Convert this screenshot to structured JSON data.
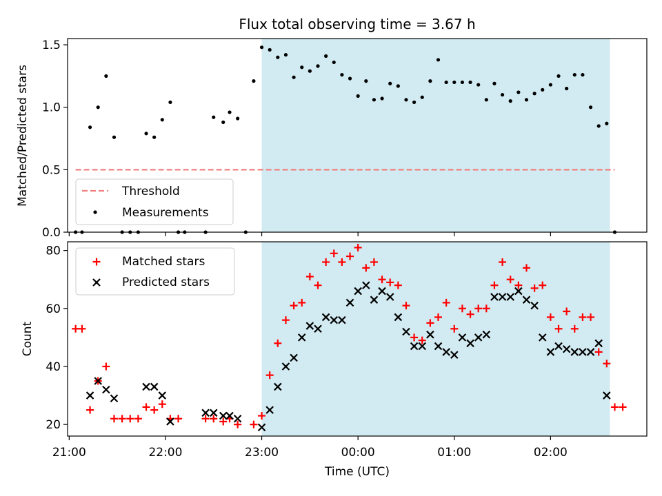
{
  "figure": {
    "title": "Flux total observing time = 3.67 h",
    "xlabel": "Time (UTC)"
  },
  "colors": {
    "shade": "#add8e6",
    "threshold": "#f08080",
    "measurements": "#000000",
    "matched": "#ff0000",
    "predicted": "#000000"
  },
  "chart_data": [
    {
      "type": "scatter",
      "panel": "top",
      "ylabel": "Matched/Predicted stars",
      "xlim": [
        "20:59",
        "03:00"
      ],
      "ylim": [
        0,
        1.55
      ],
      "yticks": [
        0.0,
        0.5,
        1.0,
        1.5
      ],
      "ytick_labels": [
        "0.0",
        "0.5",
        "1.0",
        "1.5"
      ],
      "shaded_span": [
        "23:00",
        "02:37"
      ],
      "threshold": {
        "name": "Threshold",
        "value": 0.5,
        "x": [
          "21:04",
          "02:40"
        ],
        "style": "dashed"
      },
      "legend": "lower-left",
      "series": [
        {
          "name": "Measurements",
          "x": [
            "21:04",
            "21:08",
            "21:13",
            "21:18",
            "21:23",
            "21:28",
            "21:33",
            "21:38",
            "21:43",
            "21:48",
            "21:53",
            "21:58",
            "22:03",
            "22:08",
            "22:12",
            "22:25",
            "22:30",
            "22:36",
            "22:40",
            "22:45",
            "22:50",
            "22:55",
            "23:00",
            "23:05",
            "23:10",
            "23:15",
            "23:20",
            "23:25",
            "23:30",
            "23:35",
            "23:40",
            "23:45",
            "23:50",
            "23:55",
            "24:00",
            "24:05",
            "24:10",
            "24:15",
            "24:20",
            "24:25",
            "24:30",
            "24:35",
            "24:40",
            "24:45",
            "24:50",
            "24:55",
            "25:00",
            "25:05",
            "25:10",
            "25:15",
            "25:20",
            "25:25",
            "25:30",
            "25:35",
            "25:40",
            "25:45",
            "25:50",
            "25:55",
            "26:00",
            "26:05",
            "26:10",
            "26:15",
            "26:20",
            "26:25",
            "26:30",
            "26:35",
            "26:40",
            "26:45"
          ],
          "y": [
            0.0,
            0.0,
            0.84,
            1.0,
            1.25,
            0.76,
            0.0,
            0.0,
            0.0,
            0.79,
            0.76,
            0.9,
            1.04,
            0.0,
            0.0,
            0.0,
            0.92,
            0.88,
            0.96,
            0.91,
            0.0,
            1.21,
            1.48,
            1.46,
            1.4,
            1.42,
            1.24,
            1.32,
            1.29,
            1.33,
            1.41,
            1.36,
            1.26,
            1.23,
            1.09,
            1.21,
            1.06,
            1.07,
            1.19,
            1.17,
            1.06,
            1.04,
            1.08,
            1.21,
            1.38,
            1.2,
            1.2,
            1.2,
            1.2,
            1.18,
            1.06,
            1.19,
            1.1,
            1.05,
            1.12,
            1.06,
            1.11,
            1.14,
            1.18,
            1.25,
            1.15,
            1.26,
            1.26,
            1.0,
            0.85,
            0.87,
            0.0,
            null
          ]
        }
      ]
    },
    {
      "type": "scatter",
      "panel": "bottom",
      "ylabel": "Count",
      "xlim": [
        "20:59",
        "03:00"
      ],
      "ylim": [
        16,
        83
      ],
      "yticks": [
        20,
        40,
        60,
        80
      ],
      "ytick_labels": [
        "20",
        "40",
        "60",
        "80"
      ],
      "xticks": [
        "21:00",
        "22:00",
        "23:00",
        "00:00",
        "01:00",
        "02:00"
      ],
      "shaded_span": [
        "23:00",
        "02:37"
      ],
      "legend": "upper-left",
      "series": [
        {
          "name": "Matched stars",
          "marker": "+",
          "x": [
            "21:04",
            "21:08",
            "21:13",
            "21:18",
            "21:23",
            "21:28",
            "21:33",
            "21:38",
            "21:43",
            "21:48",
            "21:53",
            "21:58",
            "22:03",
            "22:08",
            "22:25",
            "22:30",
            "22:36",
            "22:40",
            "22:45",
            "22:55",
            "23:00",
            "23:05",
            "23:10",
            "23:15",
            "23:20",
            "23:25",
            "23:30",
            "23:35",
            "23:40",
            "23:45",
            "23:50",
            "23:55",
            "24:00",
            "24:05",
            "24:10",
            "24:15",
            "24:20",
            "24:25",
            "24:30",
            "24:35",
            "24:40",
            "24:45",
            "24:50",
            "24:55",
            "25:00",
            "25:05",
            "25:10",
            "25:15",
            "25:20",
            "25:25",
            "25:30",
            "25:35",
            "25:40",
            "25:45",
            "25:50",
            "25:55",
            "26:00",
            "26:05",
            "26:10",
            "26:15",
            "26:20",
            "26:25",
            "26:30",
            "26:35",
            "26:40",
            "26:45"
          ],
          "y": [
            53,
            53,
            25,
            35,
            40,
            22,
            22,
            22,
            22,
            26,
            25,
            27,
            22,
            22,
            22,
            22,
            21,
            22,
            20,
            20,
            23,
            37,
            48,
            56,
            61,
            62,
            71,
            68,
            76,
            79,
            76,
            78,
            81,
            74,
            76,
            70,
            69,
            68,
            61,
            50,
            49,
            55,
            57,
            62,
            53,
            60,
            58,
            60,
            60,
            68,
            76,
            70,
            68,
            74,
            67,
            68,
            57,
            53,
            59,
            53,
            57,
            57,
            45,
            41,
            26,
            26
          ]
        },
        {
          "name": "Predicted stars",
          "marker": "x",
          "x": [
            "21:13",
            "21:18",
            "21:23",
            "21:28",
            "21:48",
            "21:53",
            "21:58",
            "22:03",
            "22:25",
            "22:30",
            "22:36",
            "22:40",
            "22:45",
            "23:00",
            "23:05",
            "23:10",
            "23:15",
            "23:20",
            "23:25",
            "23:30",
            "23:35",
            "23:40",
            "23:45",
            "23:50",
            "23:55",
            "24:00",
            "24:05",
            "24:10",
            "24:15",
            "24:20",
            "24:25",
            "24:30",
            "24:35",
            "24:40",
            "24:45",
            "24:50",
            "24:55",
            "25:00",
            "25:05",
            "25:10",
            "25:15",
            "25:20",
            "25:25",
            "25:30",
            "25:35",
            "25:40",
            "25:45",
            "25:50",
            "25:55",
            "26:00",
            "26:05",
            "26:10",
            "26:15",
            "26:20",
            "26:25",
            "26:30",
            "26:35",
            "26:40"
          ],
          "y": [
            30,
            35,
            32,
            29,
            33,
            33,
            30,
            21,
            24,
            24,
            23,
            23,
            22,
            19,
            25,
            33,
            40,
            43,
            50,
            54,
            53,
            57,
            56,
            56,
            62,
            66,
            68,
            63,
            66,
            64,
            57,
            52,
            47,
            47,
            51,
            47,
            45,
            44,
            50,
            48,
            50,
            51,
            64,
            64,
            64,
            66,
            63,
            61,
            50,
            45,
            47,
            46,
            45,
            45,
            45,
            48,
            30,
            null
          ]
        }
      ]
    }
  ]
}
